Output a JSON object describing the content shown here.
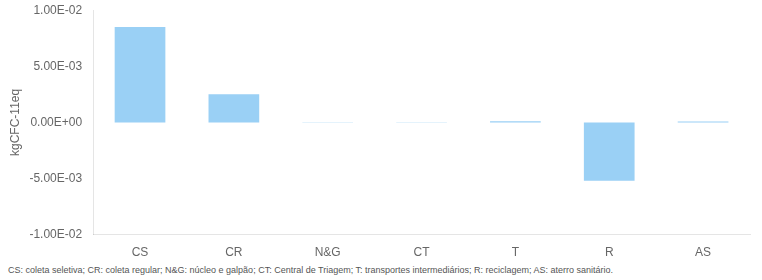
{
  "chart_data": {
    "type": "bar",
    "categories": [
      "CS",
      "CR",
      "N&G",
      "CT",
      "T",
      "R",
      "AS"
    ],
    "values": [
      0.0085,
      0.0025,
      2e-05,
      2e-05,
      0.00011,
      -0.0052,
      8e-05
    ],
    "ylabel": "kgCFC-11eq",
    "ylim": [
      -0.01,
      0.01
    ],
    "yticks": [
      {
        "value": -0.01,
        "label": "-1.00E-02"
      },
      {
        "value": -0.005,
        "label": "-5.00E-03"
      },
      {
        "value": 0.0,
        "label": "0.00E+00"
      },
      {
        "value": 0.005,
        "label": "5.00E-03"
      },
      {
        "value": 0.01,
        "label": "1.00E-02"
      }
    ],
    "grid": false,
    "footnote": "CS: coleta seletiva; CR: coleta regular; N&G: núcleo e galpão; CT: Central de Triagem; T: transportes intermediários; R: reciclagem; AS: aterro sanitário."
  }
}
